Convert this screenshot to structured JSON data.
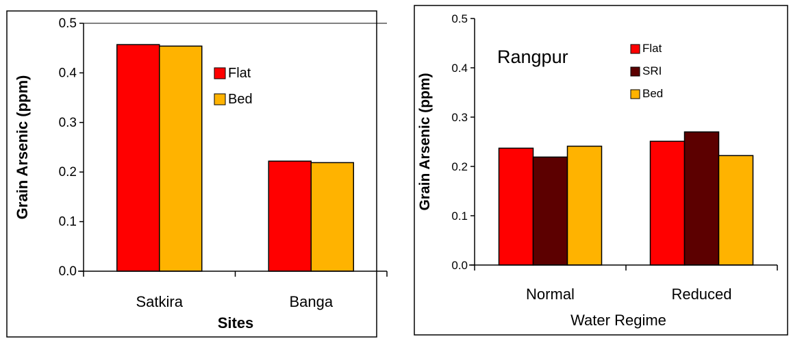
{
  "chart_data": [
    {
      "type": "bar",
      "title": "",
      "xlabel": "Sites",
      "ylabel": "Grain Arsenic (ppm)",
      "ylim": [
        0,
        0.5
      ],
      "yticks": [
        "0.0",
        "0.1",
        "0.2",
        "0.3",
        "0.4",
        "0.5"
      ],
      "categories": [
        "Satkira",
        "Banga"
      ],
      "series": [
        {
          "name": "Flat",
          "color": "#ff0000",
          "values": [
            0.457,
            0.222
          ]
        },
        {
          "name": "Bed",
          "color": "#ffb300",
          "values": [
            0.454,
            0.219
          ]
        }
      ],
      "legend_position": "top-right",
      "grid": false
    },
    {
      "type": "bar",
      "title": "",
      "annotation": "Rangpur",
      "xlabel": "Water Regime",
      "ylabel": "Grain Arsenic (ppm)",
      "ylim": [
        0,
        0.5
      ],
      "yticks": [
        "0.0",
        "0.1",
        "0.2",
        "0.3",
        "0.4",
        "0.5"
      ],
      "categories": [
        "Normal",
        "Reduced"
      ],
      "series": [
        {
          "name": "Flat",
          "color": "#ff0000",
          "values": [
            0.237,
            0.251
          ]
        },
        {
          "name": "SRI",
          "color": "#5c0000",
          "values": [
            0.219,
            0.27
          ]
        },
        {
          "name": "Bed",
          "color": "#ffb300",
          "values": [
            0.241,
            0.222
          ]
        }
      ],
      "legend_position": "top-right",
      "grid": false
    }
  ]
}
